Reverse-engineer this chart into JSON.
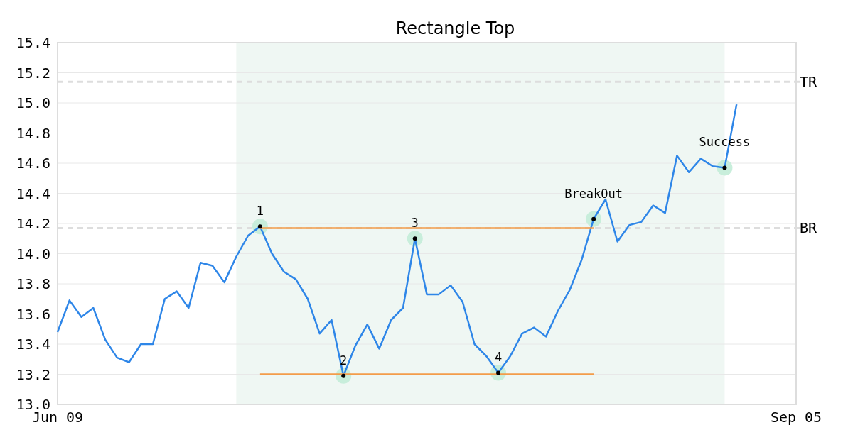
{
  "chart_data": {
    "type": "line",
    "title": "Rectangle Top",
    "categories": [
      "Jun 09",
      null,
      null,
      null,
      null,
      null,
      null,
      null,
      null,
      null,
      null,
      null,
      null,
      null,
      null,
      null,
      null,
      null,
      null,
      null,
      null,
      null,
      null,
      null,
      null,
      null,
      null,
      null,
      null,
      null,
      null,
      null,
      null,
      null,
      null,
      null,
      null,
      null,
      null,
      null,
      null,
      null,
      null,
      null,
      null,
      null,
      null,
      null,
      null,
      null,
      null,
      null,
      null,
      null,
      null,
      null,
      null,
      null,
      null,
      null,
      null,
      null,
      "Sep 05"
    ],
    "ylim": [
      13.0,
      15.4
    ],
    "yticks": [
      {
        "value": 13.0,
        "label": "13.0"
      },
      13.2,
      13.4,
      13.6,
      13.8,
      {
        "value": 14.0,
        "label": "14.0"
      },
      14.2,
      14.4,
      14.6,
      14.8,
      {
        "value": 15.0,
        "label": "15.0"
      },
      15.2,
      15.4
    ],
    "grid": "y",
    "marker": "none",
    "line_style": "solid",
    "series": [
      {
        "color": "#2e86e8",
        "values": [
          13.48,
          13.69,
          13.58,
          13.64,
          13.43,
          13.31,
          13.28,
          13.4,
          13.4,
          13.7,
          13.75,
          13.64,
          13.94,
          13.92,
          13.81,
          13.98,
          14.12,
          14.18,
          14.0,
          13.88,
          13.83,
          13.7,
          13.47,
          13.56,
          13.19,
          13.39,
          13.53,
          13.37,
          13.56,
          13.64,
          14.1,
          13.73,
          13.73,
          13.79,
          13.68,
          13.4,
          13.32,
          13.21,
          13.32,
          13.47,
          13.51,
          13.45,
          13.62,
          13.76,
          13.96,
          14.23,
          14.36,
          14.08,
          14.19,
          14.21,
          14.32,
          14.27,
          14.65,
          14.54,
          14.63,
          14.58,
          14.57,
          14.99,
          null,
          null,
          null,
          null,
          null
        ]
      },
      {
        "type": "line",
        "color": "#f39c4a",
        "values": [
          null,
          null,
          null,
          null,
          null,
          null,
          null,
          null,
          null,
          null,
          null,
          null,
          null,
          null,
          null,
          null,
          null,
          14.17,
          14.17,
          14.17,
          14.17,
          14.17,
          14.17,
          14.17,
          14.17,
          14.17,
          14.17,
          14.17,
          14.17,
          14.17,
          14.17,
          14.17,
          14.17,
          14.17,
          14.17,
          14.17,
          14.17,
          14.17,
          14.17,
          14.17,
          14.17,
          14.17,
          14.17,
          14.17,
          14.17,
          14.17,
          null,
          null,
          null,
          null,
          null,
          null,
          null,
          null,
          null,
          null,
          null,
          null,
          null,
          null,
          null,
          null,
          null
        ]
      },
      {
        "type": "line",
        "color": "#f39c4a",
        "values": [
          null,
          null,
          null,
          null,
          null,
          null,
          null,
          null,
          null,
          null,
          null,
          null,
          null,
          null,
          null,
          null,
          null,
          13.2,
          13.2,
          13.2,
          13.2,
          13.2,
          13.2,
          13.2,
          13.2,
          13.2,
          13.2,
          13.2,
          13.2,
          13.2,
          13.2,
          13.2,
          13.2,
          13.2,
          13.2,
          13.2,
          13.2,
          13.2,
          13.2,
          13.2,
          13.2,
          13.2,
          13.2,
          13.2,
          13.2,
          13.2,
          null,
          null,
          null,
          null,
          null,
          null,
          null,
          null,
          null,
          null,
          null,
          null,
          null,
          null,
          null,
          null,
          null
        ]
      },
      {
        "type": "scatter",
        "marker": "circle",
        "color": "#c8eedb",
        "values": [
          null,
          null,
          null,
          null,
          null,
          null,
          null,
          null,
          null,
          null,
          null,
          null,
          null,
          null,
          null,
          null,
          null,
          14.18,
          null,
          null,
          null,
          null,
          null,
          null,
          13.19,
          null,
          null,
          null,
          null,
          null,
          14.1,
          null,
          null,
          null,
          null,
          null,
          null,
          13.21,
          null,
          null,
          null,
          null,
          null,
          null,
          null,
          14.23,
          null,
          null,
          null,
          null,
          null,
          null,
          null,
          null,
          null,
          null,
          14.57,
          null,
          null,
          null,
          null,
          null,
          null
        ]
      }
    ],
    "ref_lines": [
      {
        "axis": "y",
        "value": 15.14,
        "label": "TR",
        "color": "#dddddd",
        "line_style": "dashed"
      },
      {
        "axis": "y",
        "value": 14.17,
        "label": "BR",
        "color": "#dddddd",
        "line_style": "dashed"
      }
    ],
    "annotations": [
      {
        "text": "1",
        "y": 14.18
      },
      {
        "text": "2",
        "y": 13.19
      },
      {
        "text": "3",
        "y": 14.1
      },
      {
        "text": "4",
        "y": 13.21
      },
      {
        "text": "BreakOut",
        "y": 14.23
      },
      {
        "text": "Success",
        "y": 14.57
      }
    ]
  }
}
